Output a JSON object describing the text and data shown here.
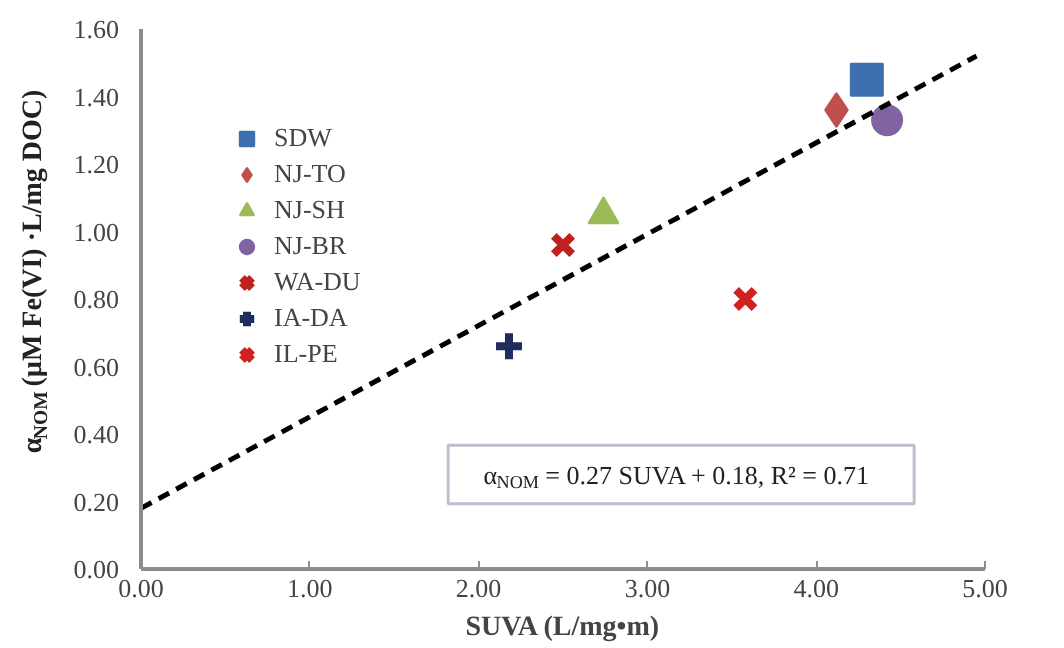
{
  "chart_data": {
    "type": "scatter",
    "xlabel": "SUVA (L/mg•m)",
    "ylabel": "α$_{NOM}$ (µM  Fe(VI) ·L/mg DOC)",
    "xlim": [
      0,
      5
    ],
    "ylim": [
      0,
      1.6
    ],
    "xticks": [
      {
        "value": 0,
        "label": "0.00"
      },
      {
        "value": 1,
        "label": "1.00"
      },
      {
        "value": 2,
        "label": "2.00"
      },
      {
        "value": 3,
        "label": "3.00"
      },
      {
        "value": 4,
        "label": "4.00"
      },
      {
        "value": 5,
        "label": "5.00"
      }
    ],
    "yticks": [
      {
        "value": 0,
        "label": "0.00"
      },
      {
        "value": 0.2,
        "label": "0.20"
      },
      {
        "value": 0.4,
        "label": "0.40"
      },
      {
        "value": 0.6,
        "label": "0.60"
      },
      {
        "value": 0.8,
        "label": "0.80"
      },
      {
        "value": 1.0,
        "label": "1.00"
      },
      {
        "value": 1.2,
        "label": "1.20"
      },
      {
        "value": 1.4,
        "label": "1.40"
      },
      {
        "value": 1.6,
        "label": "1.60"
      }
    ],
    "grid": false,
    "legend": "top left",
    "series": [
      {
        "name": "SDW",
        "color": "#3e6fb0",
        "marker": "square",
        "x": [
          4.3
        ],
        "values": [
          1.45
        ]
      },
      {
        "name": "NJ-TO",
        "color": "#c0504d",
        "marker": "diamond",
        "x": [
          4.12
        ],
        "values": [
          1.36
        ]
      },
      {
        "name": "NJ-SH",
        "color": "#9bbb59",
        "marker": "triangle",
        "x": [
          2.74
        ],
        "values": [
          1.05
        ]
      },
      {
        "name": "NJ-BR",
        "color": "#8064a2",
        "marker": "circle",
        "x": [
          4.42
        ],
        "values": [
          1.33
        ]
      },
      {
        "name": "WA-DU",
        "color": "#c0201e",
        "marker": "x",
        "x": [
          2.5
        ],
        "values": [
          0.96
        ]
      },
      {
        "name": "IA-DA",
        "color": "#1f2d5c",
        "marker": "cross",
        "x": [
          2.18
        ],
        "values": [
          0.66
        ]
      },
      {
        "name": "IL-PE",
        "color": "#d02020",
        "marker": "x",
        "x": [
          3.58
        ],
        "values": [
          0.8
        ]
      },
      {
        "type": "line",
        "color": "#000000",
        "line_style": "dashed",
        "x": [
          0,
          4.95
        ],
        "values": [
          0.18,
          1.52
        ]
      }
    ],
    "annotations": [
      "α$_{NOM}$ = 0.27 SUVA + 0.18, R² = 0.71"
    ]
  }
}
